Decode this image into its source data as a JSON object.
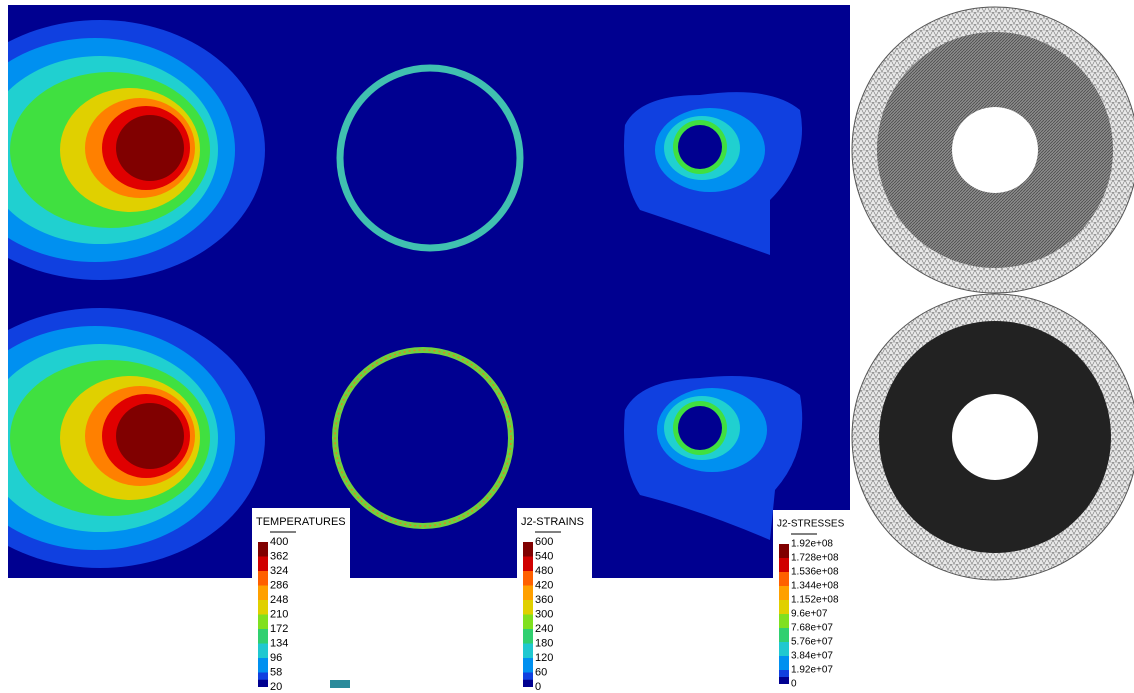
{
  "legends": [
    {
      "title": "TEMPERATURES",
      "labels": [
        "400",
        "362",
        "324",
        "286",
        "248",
        "210",
        "172",
        "134",
        "96",
        "58",
        "20"
      ]
    },
    {
      "title": "J2-STRAINS",
      "labels": [
        "600",
        "540",
        "480",
        "420",
        "360",
        "300",
        "240",
        "180",
        "120",
        "60",
        "0"
      ]
    },
    {
      "title": "J2-STRESSES",
      "labels": [
        "1.92e+08",
        "1.728e+08",
        "1.536e+08",
        "1.344e+08",
        "1.152e+08",
        "9.6e+07",
        "7.68e+07",
        "5.76e+07",
        "3.84e+07",
        "1.92e+07",
        "0"
      ]
    }
  ]
}
